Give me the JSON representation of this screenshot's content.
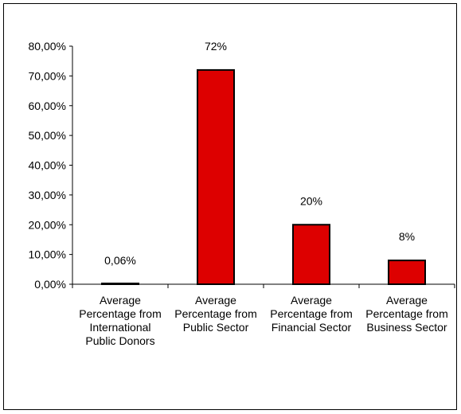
{
  "chart_data": {
    "type": "bar",
    "title": "",
    "xlabel": "",
    "ylabel": "",
    "categories": [
      "Average Percentage from International Public Donors",
      "Average Percentage from Public Sector",
      "Average Percentage from Financial Sector",
      "Average Percentage from Business Sector"
    ],
    "category_lines": [
      [
        "Average",
        "Percentage from",
        "International",
        "Public Donors"
      ],
      [
        "Average",
        "Percentage from",
        "Public Sector"
      ],
      [
        "Average",
        "Percentage from",
        "Financial Sector"
      ],
      [
        "Average",
        "Percentage from",
        "Business Sector"
      ]
    ],
    "values": [
      0.06,
      72,
      20,
      8
    ],
    "data_labels": [
      "0,06%",
      "72%",
      "20%",
      "8%"
    ],
    "ylim": [
      0,
      80
    ],
    "yticks": [
      0,
      10,
      20,
      30,
      40,
      50,
      60,
      70,
      80
    ],
    "ytick_labels": [
      "0,00%",
      "10,00%",
      "20,00%",
      "30,00%",
      "40,00%",
      "50,00%",
      "60,00%",
      "70,00%",
      "80,00%"
    ],
    "grid": false,
    "legend": "none",
    "bar_color": "#dd0000",
    "bar_edge_color": "#000000"
  }
}
